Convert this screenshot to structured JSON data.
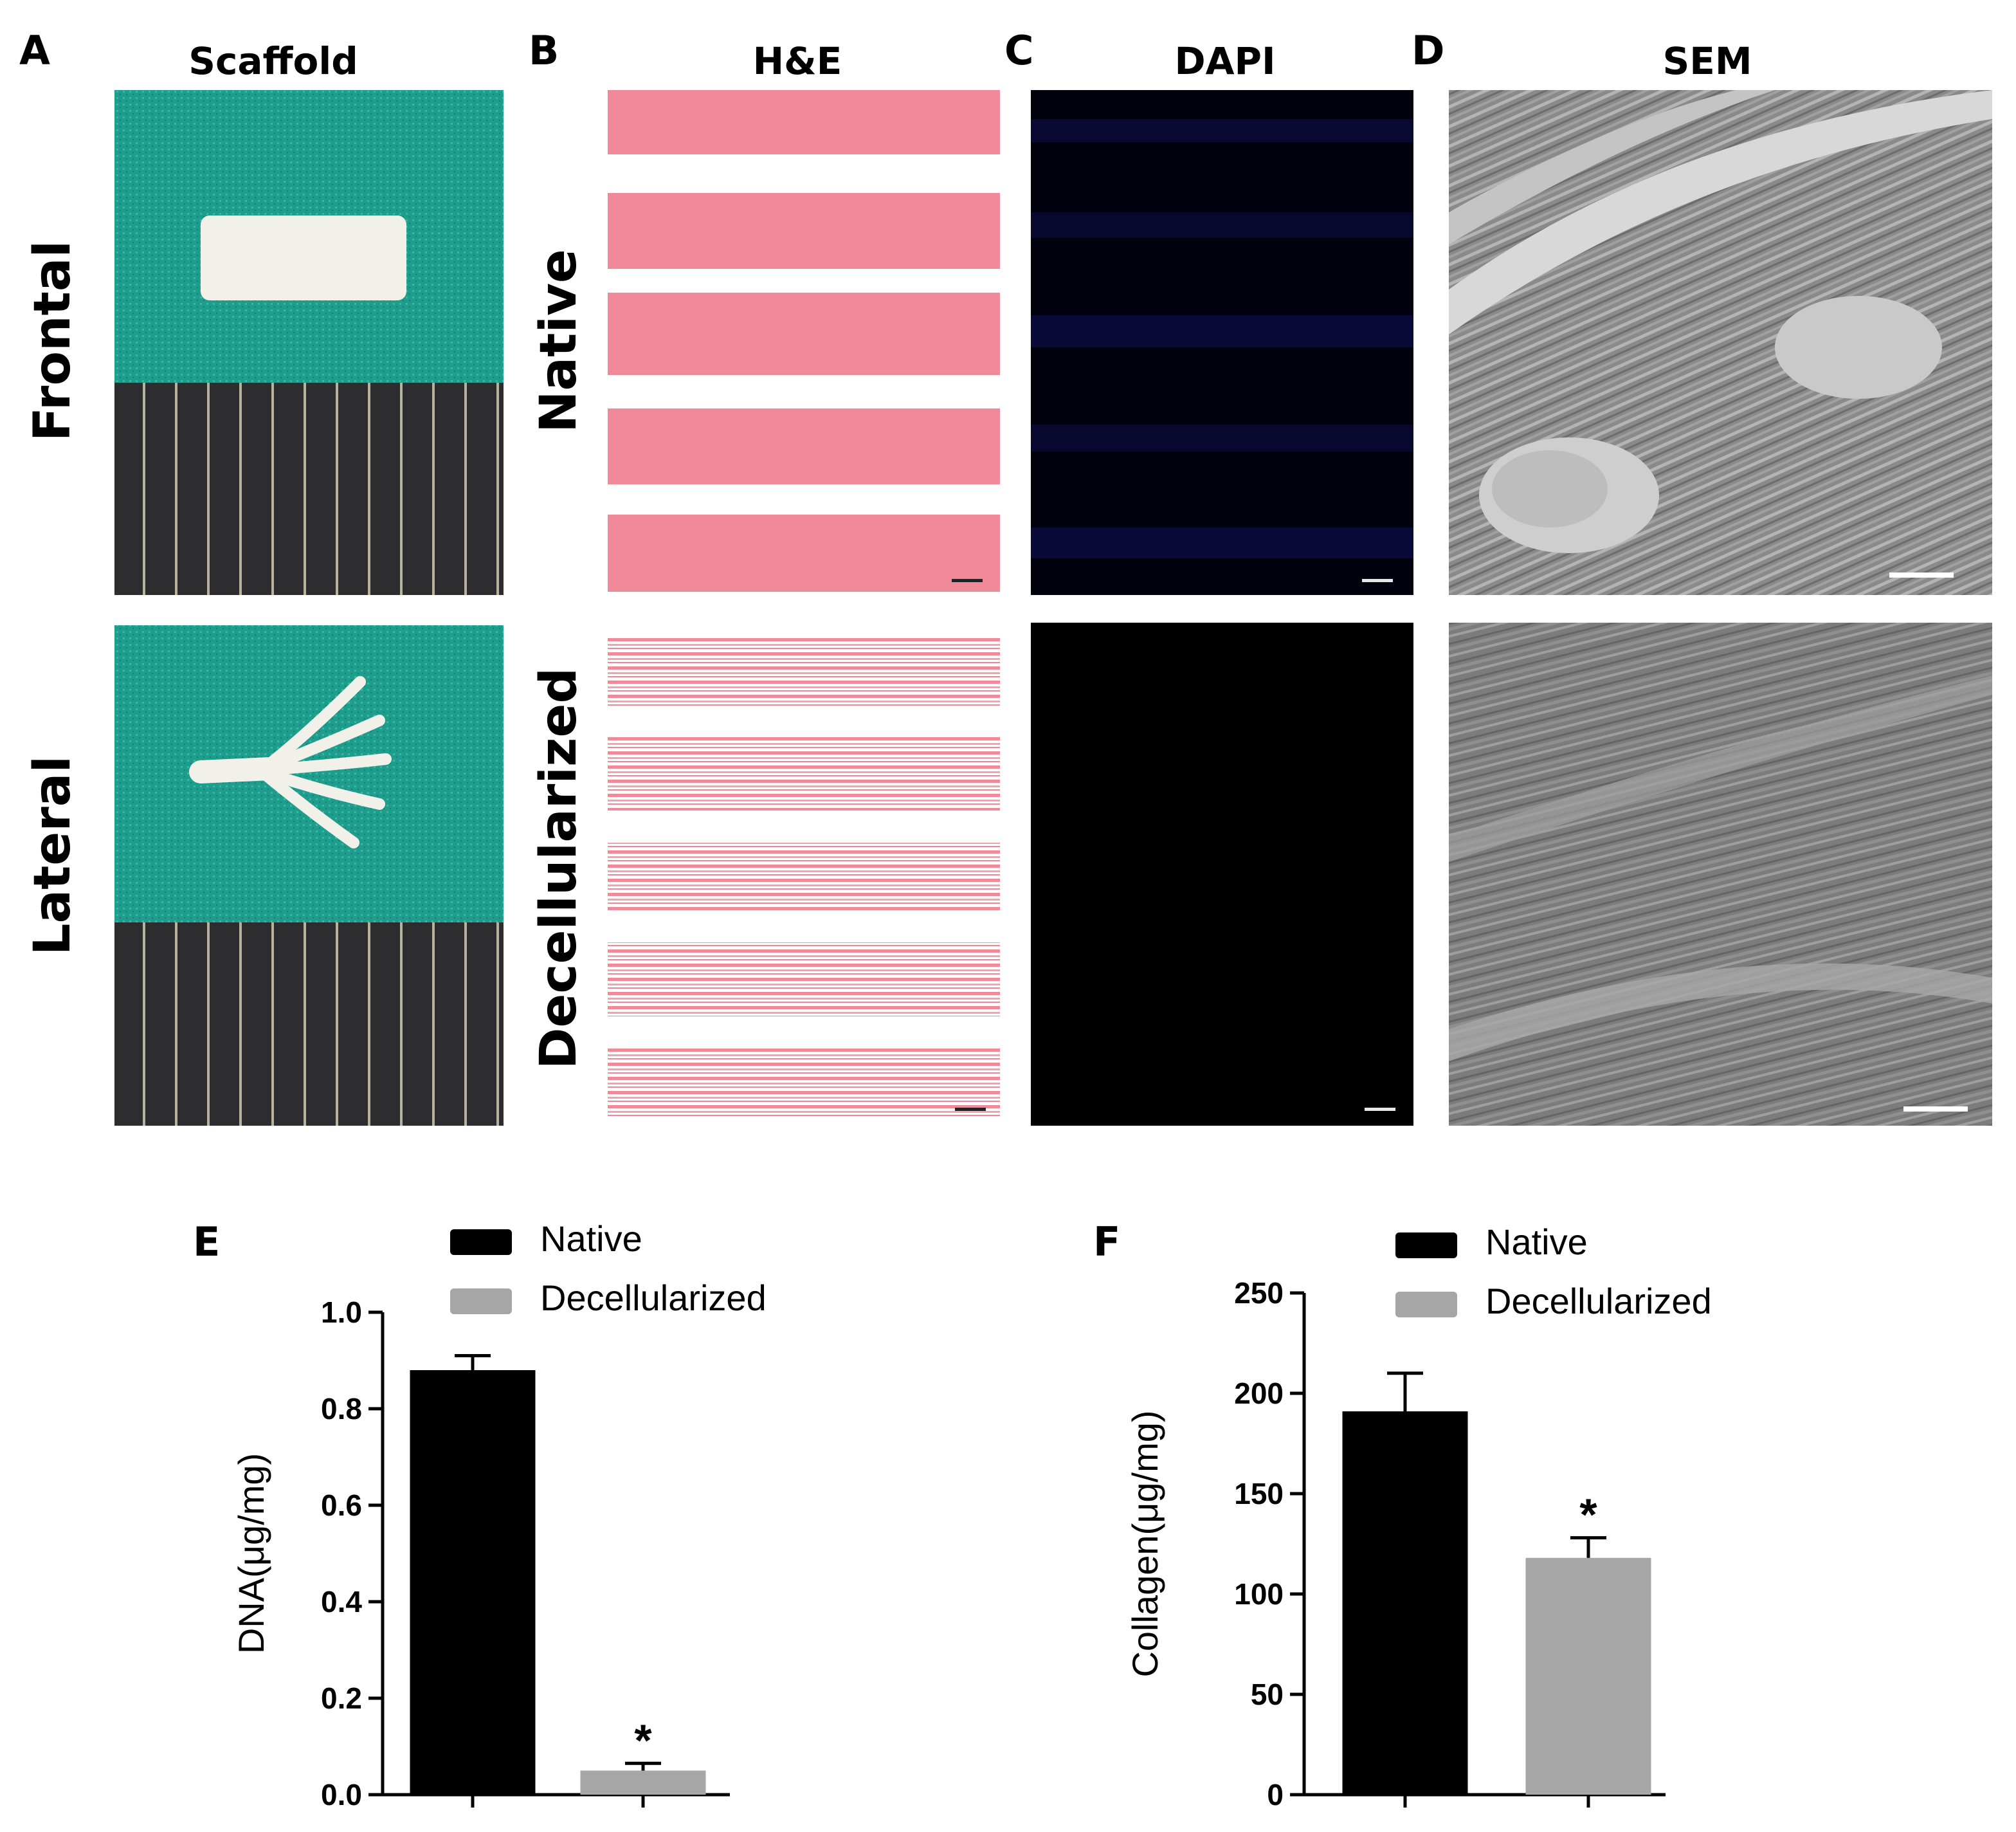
{
  "panels": {
    "a": {
      "letter": "A",
      "title": "Scaffold"
    },
    "b": {
      "letter": "B",
      "title": "H&E"
    },
    "c": {
      "letter": "C",
      "title": "DAPI"
    },
    "d": {
      "letter": "D",
      "title": "SEM"
    },
    "e": {
      "letter": "E"
    },
    "f": {
      "letter": "F"
    }
  },
  "row_labels": {
    "frontal": "Frontal",
    "lateral": "Lateral",
    "native": "Native",
    "decellularized": "Decellularized"
  },
  "colors": {
    "native_bar": "#000000",
    "decellularized_bar": "#a6a6a6",
    "he_stain": "#f08a99",
    "dapi_signal": "#101060",
    "cloth": "#1e9c8c",
    "ruler": "#2c2c2e",
    "sem_gray": "#8c8c8c"
  },
  "chart_data": [
    {
      "type": "bar",
      "categories": [
        "Native",
        "Decellularized"
      ],
      "values": [
        0.88,
        0.05
      ],
      "errors": [
        0.03,
        0.015
      ],
      "significance": [
        "",
        "*"
      ],
      "ylabel": "DNA(μg/mg)",
      "ylim": [
        0,
        1.0
      ],
      "yticks": [
        "0.0",
        "0.2",
        "0.4",
        "0.6",
        "0.8",
        "1.0"
      ],
      "legend": [
        "Native",
        "Decellularized"
      ],
      "legend_position": "top"
    },
    {
      "type": "bar",
      "categories": [
        "Native",
        "Decellularized"
      ],
      "values": [
        191,
        118
      ],
      "errors": [
        19,
        10
      ],
      "significance": [
        "",
        "*"
      ],
      "ylabel": "Collagen(μg/mg)",
      "ylim": [
        0,
        250
      ],
      "yticks": [
        "0",
        "50",
        "100",
        "150",
        "200",
        "250"
      ],
      "legend": [
        "Native",
        "Decellularized"
      ],
      "legend_position": "top"
    }
  ]
}
